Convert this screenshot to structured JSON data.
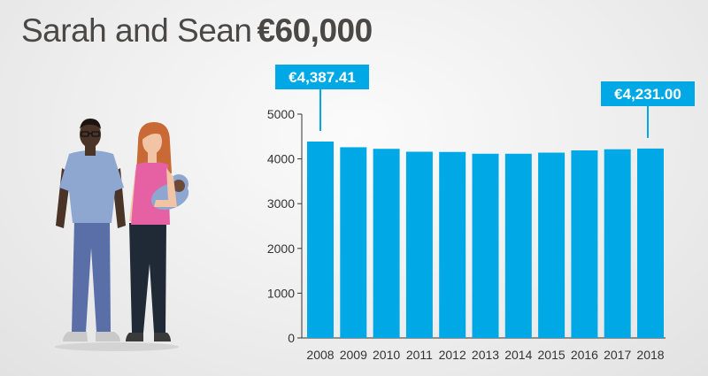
{
  "header": {
    "names": "Sarah and Sean",
    "amount": "€60,000"
  },
  "colors": {
    "bar": "#00a9e6",
    "callout_bg": "#00a9e6",
    "callout_text": "#ffffff",
    "title": "#4a4846",
    "axis": "#333333"
  },
  "illustration": {
    "icon": "family-couple-with-baby-illustration"
  },
  "chart_data": {
    "type": "bar",
    "categories": [
      "2008",
      "2009",
      "2010",
      "2011",
      "2012",
      "2013",
      "2014",
      "2015",
      "2016",
      "2017",
      "2018"
    ],
    "values": [
      4387.41,
      4260,
      4225,
      4160,
      4155,
      4115,
      4115,
      4140,
      4190,
      4215,
      4231.0
    ],
    "ylim": [
      0,
      5000
    ],
    "yticks": [
      "0",
      "1000",
      "2000",
      "3000",
      "4000",
      "5000"
    ],
    "grid": false,
    "annotations": [
      {
        "category": "2008",
        "label": "€4,387.41"
      },
      {
        "category": "2018",
        "label": "€4,231.00"
      }
    ]
  }
}
